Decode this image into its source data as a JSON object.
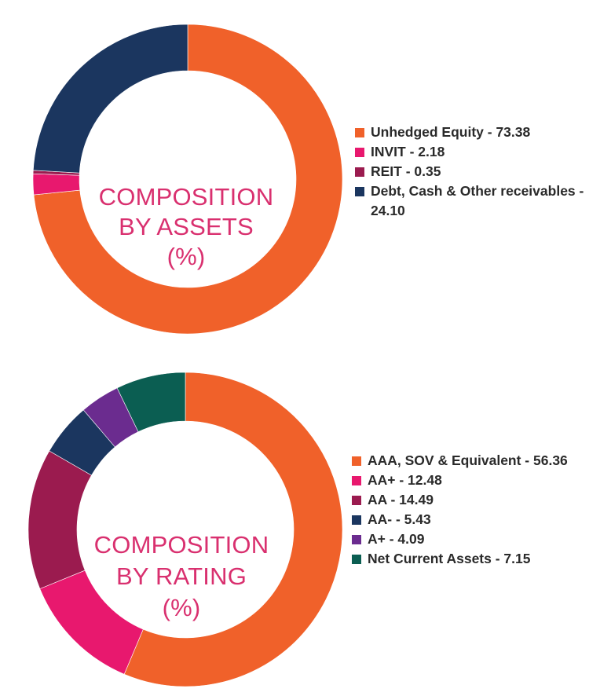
{
  "chart_data": [
    {
      "type": "pie",
      "title_lines": [
        "COMPOSITION",
        "BY ASSETS",
        "(%)"
      ],
      "slices": [
        {
          "label": "Unhedged Equity - 73.38",
          "value": 73.38,
          "color": "#f0612a"
        },
        {
          "label": "INVIT - 2.18",
          "value": 2.18,
          "color": "#e8186e"
        },
        {
          "label": "REIT - 0.35",
          "value": 0.35,
          "color": "#9b1b4f"
        },
        {
          "label": "Debt, Cash & Other receivables - 24.10",
          "value": 24.1,
          "color": "#1b365f"
        }
      ],
      "legend_position": "right"
    },
    {
      "type": "pie",
      "title_lines": [
        "COMPOSITION",
        "BY RATING",
        "(%)"
      ],
      "slices": [
        {
          "label": "AAA, SOV & Equivalent - 56.36",
          "value": 56.36,
          "color": "#f0612a"
        },
        {
          "label": "AA+ - 12.48",
          "value": 12.48,
          "color": "#e8186e"
        },
        {
          "label": "AA - 14.49",
          "value": 14.49,
          "color": "#9b1b4f"
        },
        {
          "label": "AA- - 5.43",
          "value": 5.43,
          "color": "#1b365f"
        },
        {
          "label": "A+ - 4.09",
          "value": 4.09,
          "color": "#6b2c8f"
        },
        {
          "label": "Net Current Assets - 7.15",
          "value": 7.15,
          "color": "#0b5e52"
        }
      ],
      "legend_position": "right"
    }
  ]
}
